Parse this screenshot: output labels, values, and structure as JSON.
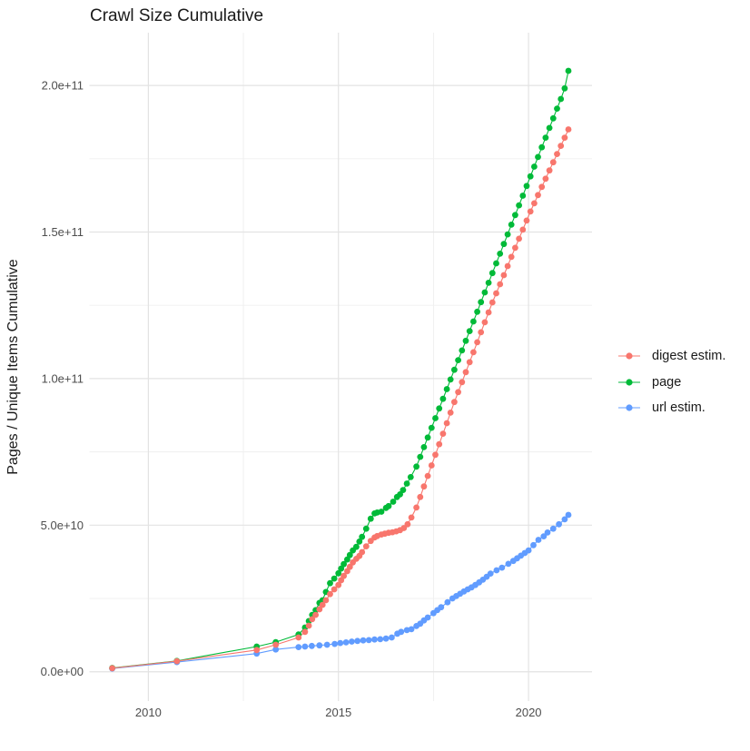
{
  "chart_data": {
    "type": "scatter-line",
    "title": "Crawl Size Cumulative",
    "xlabel": "",
    "ylabel": "Pages / Unique Items Cumulative",
    "legend_position": "right",
    "grid": true,
    "value_unit_note": "point values below are in billions (1e9 pages); y tick labels shown in scientific notation",
    "xlim": [
      2008.45,
      2021.67
    ],
    "ylim": [
      -10,
      218
    ],
    "x_ticks": [
      {
        "label": "2010",
        "value": 2010
      },
      {
        "label": "2015",
        "value": 2015
      },
      {
        "label": "2020",
        "value": 2020
      }
    ],
    "y_ticks": [
      {
        "label": "0.0e+00",
        "value": 0
      },
      {
        "label": "5.0e+10",
        "value": 50
      },
      {
        "label": "1.0e+11",
        "value": 100
      },
      {
        "label": "1.5e+11",
        "value": 150
      },
      {
        "label": "2.0e+11",
        "value": 200
      }
    ],
    "x_minor": [
      2012.5,
      2017.5
    ],
    "y_minor": [
      25,
      75,
      125,
      175
    ],
    "series": [
      {
        "name": "digest estim.",
        "color": "#F8766D",
        "points": [
          [
            2009.05,
            1.2
          ],
          [
            2010.75,
            3.6
          ],
          [
            2012.85,
            7.4
          ],
          [
            2013.35,
            9.2
          ],
          [
            2013.95,
            11.7
          ],
          [
            2014.12,
            13.6
          ],
          [
            2014.22,
            15.7
          ],
          [
            2014.31,
            17.9
          ],
          [
            2014.4,
            19.4
          ],
          [
            2014.5,
            21.3
          ],
          [
            2014.58,
            22.8
          ],
          [
            2014.67,
            24.4
          ],
          [
            2014.78,
            26.5
          ],
          [
            2014.89,
            28.1
          ],
          [
            2015.0,
            29.6
          ],
          [
            2015.07,
            31.2
          ],
          [
            2015.14,
            32.7
          ],
          [
            2015.23,
            34.3
          ],
          [
            2015.3,
            35.8
          ],
          [
            2015.38,
            37.3
          ],
          [
            2015.47,
            38.5
          ],
          [
            2015.55,
            39.5
          ],
          [
            2015.62,
            40.8
          ],
          [
            2015.73,
            42.8
          ],
          [
            2015.85,
            44.6
          ],
          [
            2015.95,
            45.8
          ],
          [
            2016.02,
            46.3
          ],
          [
            2016.13,
            46.8
          ],
          [
            2016.22,
            47.1
          ],
          [
            2016.32,
            47.4
          ],
          [
            2016.42,
            47.6
          ],
          [
            2016.52,
            47.9
          ],
          [
            2016.62,
            48.3
          ],
          [
            2016.72,
            49.0
          ],
          [
            2016.82,
            50.3
          ],
          [
            2016.92,
            52.6
          ],
          [
            2017.05,
            56
          ],
          [
            2017.15,
            59.6
          ],
          [
            2017.25,
            63.2
          ],
          [
            2017.35,
            66.8
          ],
          [
            2017.45,
            70.4
          ],
          [
            2017.55,
            74
          ],
          [
            2017.65,
            77.6
          ],
          [
            2017.75,
            81.2
          ],
          [
            2017.85,
            84.8
          ],
          [
            2017.95,
            88.4
          ],
          [
            2018.05,
            92
          ],
          [
            2018.15,
            95.4
          ],
          [
            2018.25,
            98.8
          ],
          [
            2018.35,
            102.2
          ],
          [
            2018.45,
            105.6
          ],
          [
            2018.55,
            109
          ],
          [
            2018.65,
            112.4
          ],
          [
            2018.75,
            115.8
          ],
          [
            2018.85,
            119.2
          ],
          [
            2018.95,
            122.6
          ],
          [
            2019.05,
            126
          ],
          [
            2019.15,
            129.1
          ],
          [
            2019.25,
            132.2
          ],
          [
            2019.35,
            135.3
          ],
          [
            2019.45,
            138.4
          ],
          [
            2019.55,
            141.5
          ],
          [
            2019.65,
            144.6
          ],
          [
            2019.75,
            147.7
          ],
          [
            2019.85,
            150.8
          ],
          [
            2019.95,
            153.9
          ],
          [
            2020.05,
            157
          ],
          [
            2020.15,
            159.8
          ],
          [
            2020.25,
            162.6
          ],
          [
            2020.35,
            165.4
          ],
          [
            2020.45,
            168.2
          ],
          [
            2020.55,
            171
          ],
          [
            2020.65,
            173.8
          ],
          [
            2020.75,
            176.6
          ],
          [
            2020.85,
            179.4
          ],
          [
            2020.95,
            182.2
          ],
          [
            2021.05,
            185
          ]
        ]
      },
      {
        "name": "page",
        "color": "#00BA38",
        "points": [
          [
            2009.05,
            1.3
          ],
          [
            2010.75,
            3.7
          ],
          [
            2012.85,
            8.6
          ],
          [
            2013.35,
            10.1
          ],
          [
            2013.95,
            12.7
          ],
          [
            2014.12,
            15.1
          ],
          [
            2014.22,
            17.3
          ],
          [
            2014.31,
            19.4
          ],
          [
            2014.4,
            21
          ],
          [
            2014.5,
            23.5
          ],
          [
            2014.58,
            24.4
          ],
          [
            2014.67,
            27.2
          ],
          [
            2014.78,
            30.2
          ],
          [
            2014.89,
            31.8
          ],
          [
            2015.0,
            33.6
          ],
          [
            2015.07,
            35.2
          ],
          [
            2015.14,
            36.7
          ],
          [
            2015.23,
            38.3
          ],
          [
            2015.3,
            39.8
          ],
          [
            2015.38,
            41.4
          ],
          [
            2015.47,
            42.6
          ],
          [
            2015.55,
            44.4
          ],
          [
            2015.62,
            46
          ],
          [
            2015.73,
            48.8
          ],
          [
            2015.85,
            52.2
          ],
          [
            2015.95,
            54
          ],
          [
            2016.02,
            54.3
          ],
          [
            2016.13,
            54.6
          ],
          [
            2016.25,
            55.9
          ],
          [
            2016.32,
            56.5
          ],
          [
            2016.44,
            58
          ],
          [
            2016.54,
            59.6
          ],
          [
            2016.62,
            60.5
          ],
          [
            2016.7,
            62
          ],
          [
            2016.8,
            64.2
          ],
          [
            2016.9,
            66.4
          ],
          [
            2017.05,
            70
          ],
          [
            2017.15,
            73.3
          ],
          [
            2017.25,
            76.6
          ],
          [
            2017.35,
            79.9
          ],
          [
            2017.45,
            83.2
          ],
          [
            2017.55,
            86.5
          ],
          [
            2017.65,
            89.8
          ],
          [
            2017.75,
            93.1
          ],
          [
            2017.85,
            96.4
          ],
          [
            2017.95,
            99.7
          ],
          [
            2018.05,
            103
          ],
          [
            2018.15,
            106.3
          ],
          [
            2018.25,
            109.6
          ],
          [
            2018.35,
            112.9
          ],
          [
            2018.45,
            116.2
          ],
          [
            2018.55,
            119.5
          ],
          [
            2018.65,
            122.8
          ],
          [
            2018.75,
            126.1
          ],
          [
            2018.85,
            129.4
          ],
          [
            2018.95,
            132.7
          ],
          [
            2019.05,
            136
          ],
          [
            2019.15,
            139.3
          ],
          [
            2019.25,
            142.6
          ],
          [
            2019.35,
            145.9
          ],
          [
            2019.45,
            149.2
          ],
          [
            2019.55,
            152.5
          ],
          [
            2019.65,
            155.8
          ],
          [
            2019.75,
            159.1
          ],
          [
            2019.85,
            162.4
          ],
          [
            2019.95,
            165.7
          ],
          [
            2020.05,
            169
          ],
          [
            2020.15,
            172.3
          ],
          [
            2020.25,
            175.6
          ],
          [
            2020.35,
            178.9
          ],
          [
            2020.45,
            182.2
          ],
          [
            2020.55,
            185.5
          ],
          [
            2020.65,
            188.8
          ],
          [
            2020.75,
            192.1
          ],
          [
            2020.85,
            195.4
          ],
          [
            2020.95,
            199
          ],
          [
            2021.05,
            205
          ]
        ]
      },
      {
        "name": "url estim.",
        "color": "#619CFF",
        "points": [
          [
            2009.05,
            1.1
          ],
          [
            2010.75,
            3.3
          ],
          [
            2012.85,
            6.2
          ],
          [
            2013.35,
            7.6
          ],
          [
            2013.95,
            8.4
          ],
          [
            2014.12,
            8.6
          ],
          [
            2014.3,
            8.8
          ],
          [
            2014.5,
            9.0
          ],
          [
            2014.7,
            9.2
          ],
          [
            2014.9,
            9.5
          ],
          [
            2015.05,
            9.8
          ],
          [
            2015.2,
            10.0
          ],
          [
            2015.35,
            10.3
          ],
          [
            2015.5,
            10.5
          ],
          [
            2015.65,
            10.7
          ],
          [
            2015.8,
            10.8
          ],
          [
            2015.95,
            11.0
          ],
          [
            2016.1,
            11.1
          ],
          [
            2016.25,
            11.3
          ],
          [
            2016.4,
            11.7
          ],
          [
            2016.55,
            13.0
          ],
          [
            2016.65,
            13.6
          ],
          [
            2016.8,
            14.2
          ],
          [
            2016.92,
            14.5
          ],
          [
            2017.05,
            15.6
          ],
          [
            2017.15,
            16.4
          ],
          [
            2017.25,
            17.5
          ],
          [
            2017.35,
            18.5
          ],
          [
            2017.5,
            20
          ],
          [
            2017.6,
            21
          ],
          [
            2017.7,
            22
          ],
          [
            2017.87,
            23.7
          ],
          [
            2018.0,
            25
          ],
          [
            2018.1,
            25.8
          ],
          [
            2018.2,
            26.6
          ],
          [
            2018.3,
            27.4
          ],
          [
            2018.4,
            28.1
          ],
          [
            2018.5,
            28.8
          ],
          [
            2018.6,
            29.6
          ],
          [
            2018.7,
            30.5
          ],
          [
            2018.8,
            31.4
          ],
          [
            2018.9,
            32.4
          ],
          [
            2019.0,
            33.5
          ],
          [
            2019.16,
            34.6
          ],
          [
            2019.3,
            35.5
          ],
          [
            2019.47,
            36.8
          ],
          [
            2019.6,
            37.8
          ],
          [
            2019.7,
            38.7
          ],
          [
            2019.8,
            39.6
          ],
          [
            2019.9,
            40.5
          ],
          [
            2020.0,
            41.4
          ],
          [
            2020.13,
            43.2
          ],
          [
            2020.26,
            45
          ],
          [
            2020.4,
            46.2
          ],
          [
            2020.5,
            47.5
          ],
          [
            2020.65,
            48.8
          ],
          [
            2020.8,
            50.3
          ],
          [
            2020.95,
            52
          ],
          [
            2021.05,
            53.5
          ]
        ]
      }
    ],
    "style": {
      "major_grid_color": "#e3e3e3",
      "minor_grid_color": "#efefef",
      "axis_text_color": "#4d4d4d",
      "text_color": "#1a1a1a",
      "background": "#ffffff"
    }
  }
}
